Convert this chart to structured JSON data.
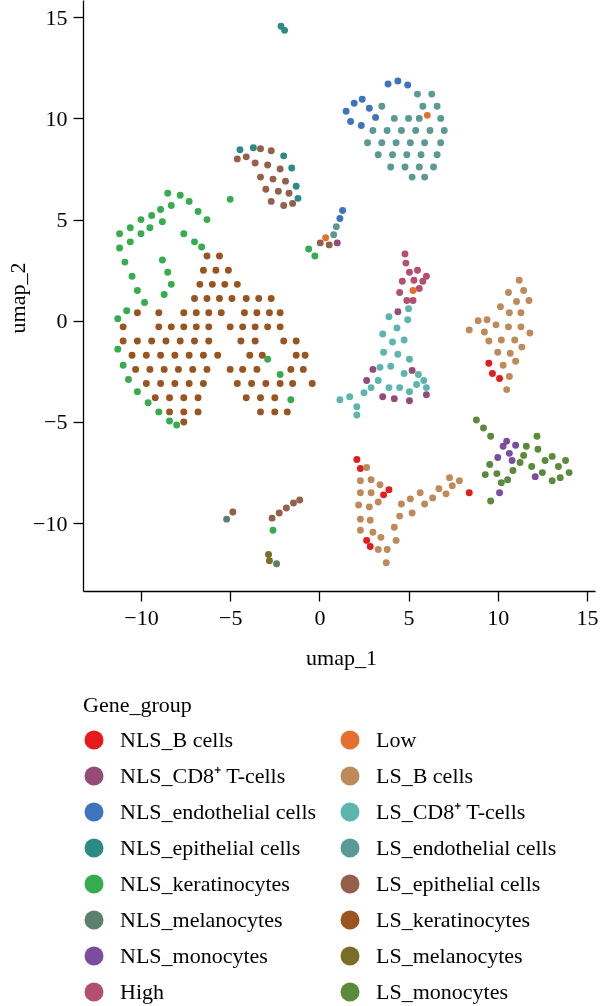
{
  "chart_data": {
    "type": "scatter",
    "xlabel": "umap_1",
    "ylabel": "umap_2",
    "legend_title": "Gene_group",
    "legend": "bottom",
    "marker": "circle",
    "xlim": [
      -13.25,
      15.45
    ],
    "ylim": [
      -13.35,
      15.85
    ],
    "xticks": [
      -10,
      -5,
      0,
      5,
      10,
      15
    ],
    "yticks": [
      -10,
      -5,
      0,
      5,
      10,
      15
    ],
    "series": [
      {
        "name": "NLS_B cells",
        "color": "#e41a1c",
        "x": [
          9.5,
          9.7,
          10.1,
          2.1,
          2.3,
          3.9,
          3.6,
          2.65,
          2.85,
          8.4
        ],
        "values": [
          -2.1,
          -2.6,
          -2.85,
          -6.85,
          -7.3,
          -8.35,
          -8.6,
          -10.85,
          -11.15,
          -8.5
        ]
      },
      {
        "name": "NLS_CD8⁺ T-cells",
        "color": "#944b77",
        "x": [
          4.4,
          3.0,
          2.65,
          5.05,
          6.0,
          5.2,
          1.0,
          3.55,
          4.2
        ],
        "values": [
          0.45,
          -2.4,
          -2.95,
          -3.95,
          -3.65,
          -2.45,
          3.85,
          -3.75,
          -3.85
        ]
      },
      {
        "name": "NLS_endothelial cells",
        "color": "#3d74bd",
        "x": [
          1.5,
          1.95,
          2.4,
          2.8,
          3.15,
          1.75,
          2.35,
          3.85,
          4.4,
          4.95,
          1.3,
          1.15
        ],
        "values": [
          10.35,
          10.75,
          10.95,
          10.5,
          10.05,
          9.85,
          9.65,
          11.7,
          11.85,
          11.65,
          5.45,
          5.05
        ]
      },
      {
        "name": "NLS_epithelial cells",
        "color": "#2e8a84",
        "x": [
          -2.15,
          -1.95,
          -2.0,
          -1.55,
          -1.3,
          -1.2,
          -3.7,
          -4.45
        ],
        "values": [
          14.55,
          14.35,
          8.15,
          7.55,
          6.65,
          6.05,
          8.55,
          8.45
        ]
      },
      {
        "name": "NLS_keratinocytes",
        "color": "#35ac4e",
        "x": [
          -8.5,
          -7.8,
          -7.3,
          -6.8,
          -6.3,
          -8.3,
          -8.9,
          -9.4,
          -10.0,
          -10.6,
          -11.2,
          -11.2,
          -10.6,
          -10.0,
          -9.5,
          -8.8,
          -10.9,
          -10.5,
          -10.2,
          -9.8,
          -11.3,
          -10.8,
          -8.8,
          -8.5,
          -8.3,
          -8.7,
          -7.6,
          -7.0,
          -6.6,
          -5.0,
          -11.3,
          -11.0,
          -10.7,
          -10.2,
          -9.6,
          -9.0,
          -8.4,
          -8.0,
          -2.9,
          -2.2,
          -1.6,
          -0.6,
          -0.25,
          -2.6
        ],
        "values": [
          6.3,
          6.2,
          5.9,
          5.4,
          5.0,
          5.7,
          5.5,
          5.2,
          5.0,
          4.6,
          4.3,
          3.6,
          3.9,
          4.3,
          4.6,
          4.9,
          2.9,
          2.2,
          1.5,
          0.9,
          0.1,
          0.5,
          3.0,
          2.4,
          1.8,
          1.3,
          4.3,
          3.9,
          3.65,
          6.0,
          -1.4,
          -2.2,
          -2.9,
          -3.5,
          -4.05,
          -4.5,
          -4.95,
          -5.15,
          -1.9,
          -2.65,
          -3.9,
          3.55,
          3.2,
          -10.35
        ]
      },
      {
        "name": "NLS_melanocytes",
        "color": "#5b816e",
        "x": [
          -5.2,
          -2.4
        ],
        "values": [
          -9.8,
          -12.0
        ]
      },
      {
        "name": "NLS_monocytes",
        "color": "#7b4d9e",
        "x": [
          10.3,
          10.65,
          11.0,
          10.0,
          10.8,
          10.1,
          12.1,
          10.5
        ],
        "values": [
          -6.2,
          -6.55,
          -6.15,
          -6.75,
          -6.9,
          -8.5,
          -7.7,
          -5.95
        ]
      },
      {
        "name": "High",
        "color": "#b54f6e",
        "x": [
          4.8,
          4.85,
          5.05,
          5.5,
          6.0,
          5.6,
          4.5,
          4.9,
          4.65,
          5.3,
          5.8,
          5.25
        ],
        "values": [
          3.3,
          2.85,
          2.4,
          2.5,
          2.2,
          1.6,
          1.4,
          1.0,
          1.95,
          2.0,
          1.95,
          1.0
        ]
      },
      {
        "name": "Low",
        "color": "#e5702e",
        "x": [
          5.25,
          6.05,
          0.35
        ],
        "values": [
          1.5,
          10.15,
          4.1
        ]
      },
      {
        "name": "LS_B cells",
        "color": "#bf8a59",
        "x": [
          11.2,
          11.45,
          10.6,
          11.05,
          11.75,
          10.15,
          10.65,
          11.3,
          9.4,
          8.9,
          8.4,
          9.25,
          9.9,
          10.6,
          11.3,
          11.8,
          9.5,
          10.2,
          10.95,
          10.0,
          10.7,
          11.35,
          10.3,
          11.0,
          10.65,
          10.5,
          2.65,
          2.3,
          2.9,
          2.3,
          2.9,
          3.4,
          2.2,
          2.8,
          3.3,
          2.3,
          2.85,
          2.3,
          3.0,
          3.45,
          3.3,
          3.75,
          3.8,
          4.3,
          4.2,
          4.5,
          4.6,
          5.2,
          5.1,
          5.65,
          5.9,
          6.35,
          6.7,
          7.1,
          7.45,
          7.85,
          7.3
        ],
        "values": [
          2.0,
          1.5,
          1.4,
          0.95,
          1.0,
          0.7,
          0.4,
          0.4,
          0.05,
          0.0,
          -0.45,
          -0.55,
          -0.2,
          -0.3,
          -0.3,
          -0.6,
          -1.0,
          -0.95,
          -0.95,
          -1.55,
          -1.6,
          -1.3,
          -2.2,
          -2.0,
          -2.75,
          -3.4,
          -7.25,
          -7.9,
          -7.85,
          -8.5,
          -8.5,
          -8.1,
          -9.1,
          -9.2,
          -8.95,
          -9.8,
          -9.85,
          -10.35,
          -10.45,
          -10.7,
          -11.3,
          -11.95,
          -11.3,
          -10.85,
          -10.2,
          -9.65,
          -9.05,
          -9.5,
          -8.8,
          -8.5,
          -9.05,
          -8.75,
          -8.3,
          -8.55,
          -8.15,
          -7.9,
          -7.75
        ]
      },
      {
        "name": "LS_CD8⁺ T-cells",
        "color": "#5cb5ae",
        "x": [
          3.9,
          4.95,
          4.35,
          3.55,
          4.75,
          4.1,
          3.6,
          4.4,
          5.05,
          3.4,
          4.0,
          4.75,
          5.55,
          5.85,
          3.3,
          3.9,
          4.5,
          5.05,
          6.0,
          5.45,
          1.7,
          1.15,
          2.1,
          2.1,
          2.5,
          2.9,
          5.0
        ],
        "values": [
          0.2,
          0.05,
          -0.35,
          -0.65,
          -0.95,
          -1.05,
          -1.55,
          -1.65,
          -1.9,
          -2.3,
          -2.25,
          -2.6,
          -2.65,
          -2.95,
          -2.95,
          -3.3,
          -3.3,
          -3.5,
          -3.3,
          -3.15,
          -3.75,
          -3.9,
          -4.25,
          -4.65,
          -3.55,
          -3.3,
          0.6
        ]
      },
      {
        "name": "LS_endothelial cells",
        "color": "#5a9a95",
        "x": [
          5.5,
          6.3,
          3.5,
          5.8,
          6.6,
          4.2,
          5.0,
          5.6,
          6.8,
          3.0,
          3.8,
          4.6,
          5.4,
          6.2,
          7.0,
          2.7,
          3.5,
          4.3,
          5.1,
          5.9,
          6.8,
          3.3,
          4.1,
          4.9,
          5.7,
          6.6,
          4.0,
          4.8,
          5.6,
          6.4,
          5.2,
          5.9,
          0.95,
          0.8
        ],
        "values": [
          11.2,
          11.2,
          10.6,
          10.6,
          10.6,
          10.0,
          10.0,
          10.0,
          10.0,
          9.4,
          9.4,
          9.4,
          9.4,
          9.4,
          9.4,
          8.8,
          8.8,
          8.8,
          8.8,
          8.8,
          8.8,
          8.2,
          8.2,
          8.2,
          8.2,
          8.2,
          7.6,
          7.6,
          7.6,
          7.6,
          7.1,
          7.1,
          4.65,
          4.25
        ]
      },
      {
        "name": "LS_epithelial cells",
        "color": "#94604a",
        "x": [
          -4.6,
          -4.1,
          -3.3,
          -2.7,
          -3.6,
          -2.9,
          -2.2,
          -3.3,
          -2.6,
          -1.9,
          -3.0,
          -2.3,
          -1.7,
          -2.7,
          -2.0,
          -1.5,
          -4.85,
          -2.65,
          -2.25,
          -1.85,
          -1.45,
          -1.1,
          0.05,
          0.55
        ],
        "values": [
          8.0,
          8.1,
          8.5,
          8.4,
          7.8,
          7.7,
          7.5,
          7.1,
          7.0,
          6.9,
          6.5,
          6.4,
          6.3,
          5.9,
          5.7,
          5.8,
          -9.45,
          -9.75,
          -9.5,
          -9.25,
          -9.0,
          -8.85,
          3.85,
          3.75
        ]
      },
      {
        "name": "LS_keratinocytes",
        "color": "#9a541f",
        "x": [
          -6.3,
          -5.6,
          -6.5,
          -5.8,
          -5.1,
          -6.7,
          -6.0,
          -5.3,
          -4.6,
          -7.0,
          -6.3,
          -5.6,
          -4.9,
          -4.1,
          -3.4,
          -2.7,
          -10.2,
          -9.0,
          -7.6,
          -6.9,
          -6.2,
          -5.5,
          -4.2,
          -3.5,
          -2.8,
          -2.2,
          -11.0,
          -9.0,
          -8.3,
          -7.6,
          -6.9,
          -6.2,
          -5.0,
          -4.3,
          -3.6,
          -2.9,
          -2.2,
          -11.0,
          -10.2,
          -9.4,
          -8.6,
          -7.8,
          -7.0,
          -6.2,
          -4.4,
          -3.6,
          -2.0,
          -1.3,
          -10.5,
          -9.7,
          -8.9,
          -8.1,
          -7.3,
          -6.5,
          -5.7,
          -3.9,
          -3.2,
          -1.3,
          -0.8,
          -10.3,
          -9.5,
          -8.7,
          -7.9,
          -7.1,
          -6.3,
          -5.0,
          -4.3,
          -3.5,
          -1.6,
          -0.9,
          -9.7,
          -8.9,
          -8.1,
          -7.3,
          -6.5,
          -4.6,
          -3.8,
          -3.0,
          -2.2,
          -1.5,
          -0.4,
          -9.2,
          -8.4,
          -7.6,
          -6.8,
          -4.1,
          -3.3,
          -2.5,
          -8.4,
          -7.6,
          -6.8,
          -3.3,
          -2.5,
          -1.8,
          -7.6
        ],
        "values": [
          3.2,
          3.2,
          2.5,
          2.5,
          2.5,
          1.8,
          1.8,
          1.8,
          1.8,
          1.1,
          1.1,
          1.1,
          1.1,
          1.1,
          1.1,
          1.1,
          0.4,
          0.4,
          0.4,
          0.4,
          0.4,
          0.4,
          0.4,
          0.4,
          0.4,
          0.4,
          -0.3,
          -0.3,
          -0.3,
          -0.3,
          -0.3,
          -0.3,
          -0.3,
          -0.3,
          -0.3,
          -0.3,
          -0.3,
          -1.0,
          -1.0,
          -1.0,
          -1.0,
          -1.0,
          -1.0,
          -1.0,
          -1.0,
          -1.0,
          -1.0,
          -1.0,
          -1.7,
          -1.7,
          -1.7,
          -1.7,
          -1.7,
          -1.7,
          -1.7,
          -1.7,
          -1.7,
          -1.7,
          -1.7,
          -2.4,
          -2.4,
          -2.4,
          -2.4,
          -2.4,
          -2.4,
          -2.4,
          -2.4,
          -2.4,
          -2.4,
          -2.4,
          -3.1,
          -3.1,
          -3.1,
          -3.1,
          -3.1,
          -3.1,
          -3.1,
          -3.1,
          -3.1,
          -3.1,
          -3.1,
          -3.8,
          -3.8,
          -3.8,
          -3.8,
          -3.8,
          -3.8,
          -3.8,
          -4.5,
          -4.5,
          -4.5,
          -4.5,
          -4.5,
          -4.5,
          -5.0
        ]
      },
      {
        "name": "LS_melanocytes",
        "color": "#7a6e27",
        "x": [
          -2.85,
          -2.8
        ],
        "values": [
          -11.55,
          -11.85
        ]
      },
      {
        "name": "LS_monocytes",
        "color": "#5a8a3a",
        "x": [
          8.8,
          9.2,
          9.6,
          9.55,
          9.3,
          9.95,
          10.2,
          9.6,
          10.55,
          10.85,
          11.25,
          11.6,
          11.45,
          11.9,
          12.2,
          12.25,
          12.65,
          12.5,
          13.05,
          13.4,
          13.8,
          14.0,
          13.05,
          13.5
        ],
        "values": [
          -4.9,
          -5.3,
          -5.7,
          -7.1,
          -7.6,
          -7.55,
          -8.0,
          -8.9,
          -7.85,
          -7.4,
          -7.0,
          -6.2,
          -6.65,
          -7.2,
          -5.7,
          -6.35,
          -6.9,
          -7.5,
          -6.7,
          -7.2,
          -6.9,
          -7.5,
          -7.9,
          -7.75
        ]
      }
    ]
  }
}
